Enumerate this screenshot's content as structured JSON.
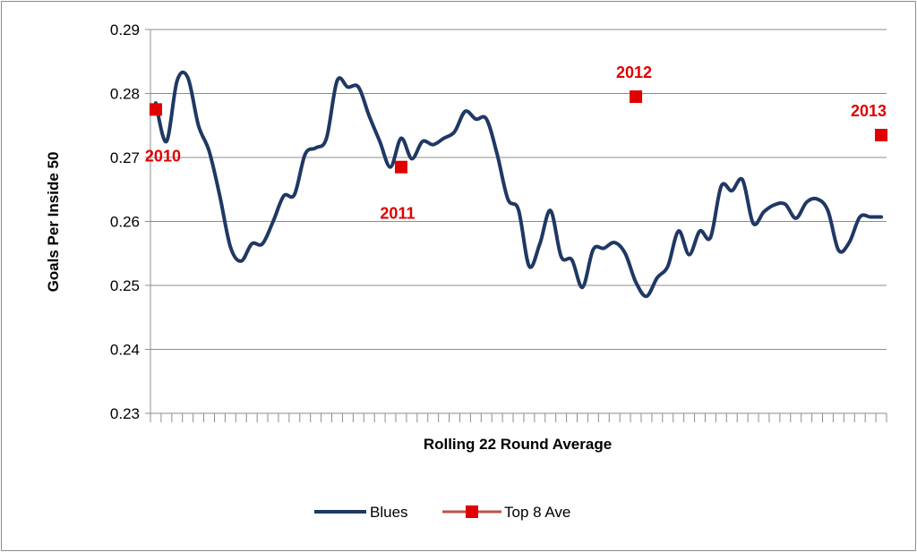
{
  "chart_data": {
    "type": "line",
    "xlabel": "Rolling 22 Round Average",
    "ylabel": "Goals Per Inside 50",
    "ylim": [
      0.23,
      0.29
    ],
    "yticks": [
      "0.29",
      "0.28",
      "0.27",
      "0.26",
      "0.25",
      "0.24",
      "0.23"
    ],
    "grid": true,
    "n_categories": 69,
    "series": [
      {
        "name": "Blues",
        "color": "#1f3864",
        "x": [
          1,
          2,
          3,
          4,
          5,
          6,
          7,
          8,
          9,
          10,
          11,
          12,
          13,
          14,
          15,
          16,
          17,
          18,
          19,
          20,
          21,
          22,
          23,
          24,
          25,
          26,
          27,
          28,
          29,
          30,
          31,
          32,
          33,
          34,
          35,
          36,
          37,
          38,
          39,
          40,
          41,
          42,
          43,
          44,
          45,
          46,
          47,
          48,
          49,
          50,
          51,
          52,
          53,
          54,
          55,
          56,
          57,
          58,
          59,
          60,
          61,
          62,
          63,
          64,
          65,
          66,
          67,
          68,
          69
        ],
        "values": [
          0.2785,
          0.2725,
          0.282,
          0.2825,
          0.275,
          0.271,
          0.264,
          0.256,
          0.2538,
          0.2565,
          0.2565,
          0.26,
          0.264,
          0.2642,
          0.2705,
          0.2715,
          0.273,
          0.282,
          0.281,
          0.281,
          0.2765,
          0.2725,
          0.2685,
          0.273,
          0.2698,
          0.2725,
          0.272,
          0.273,
          0.274,
          0.2772,
          0.276,
          0.276,
          0.2705,
          0.2635,
          0.2618,
          0.253,
          0.2565,
          0.2617,
          0.2545,
          0.254,
          0.2497,
          0.2556,
          0.2558,
          0.2567,
          0.255,
          0.2505,
          0.2483,
          0.2512,
          0.253,
          0.2585,
          0.2548,
          0.2585,
          0.2575,
          0.2655,
          0.2648,
          0.2665,
          0.2597,
          0.2615,
          0.2626,
          0.2627,
          0.2605,
          0.263,
          0.2635,
          0.2617,
          0.2555,
          0.2567,
          0.2607,
          0.2607,
          0.2607
        ]
      },
      {
        "name": "Top 8 Ave",
        "color": "#e00000",
        "marker": "square",
        "x": [
          1,
          24,
          46,
          69
        ],
        "values": [
          0.2775,
          0.2685,
          0.2795,
          0.2735
        ],
        "labels": [
          "2010",
          "2011",
          "2012",
          "2013"
        ]
      }
    ],
    "legend": {
      "position": "bottom",
      "entries": [
        "Blues",
        "Top 8 Ave"
      ]
    }
  }
}
